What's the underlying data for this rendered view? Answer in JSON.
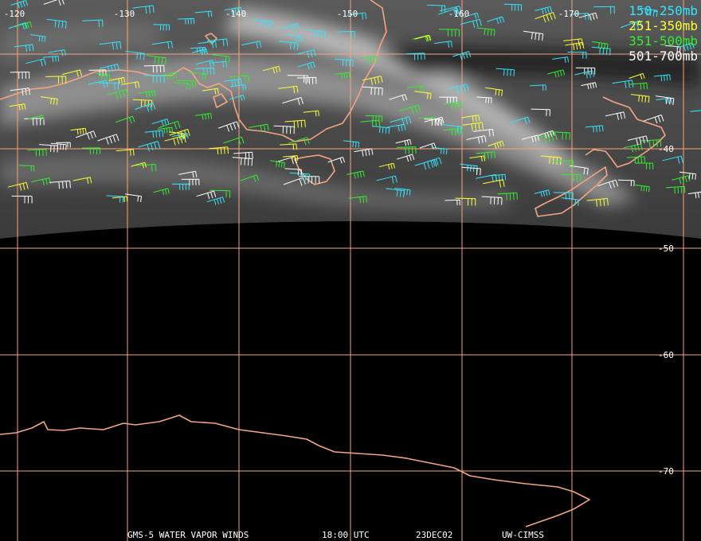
{
  "map": {
    "longitude_labels": [
      "-120",
      "-130",
      "-140",
      "-150",
      "-160",
      "-170"
    ],
    "latitude_labels": [
      "-40",
      "-50",
      "-60",
      "-70"
    ],
    "legend": [
      {
        "label": "150-250mb",
        "color": "#33e6ff"
      },
      {
        "label": "251-350mb",
        "color": "#ffff33"
      },
      {
        "label": "351-500mb",
        "color": "#33ee33"
      },
      {
        "label": "501-700mb",
        "color": "#ffffff"
      }
    ],
    "footer": [
      "GMS-5 WATER VAPOR WINDS",
      "18:00 UTC",
      "23DEC02",
      "UW-CIMSS"
    ]
  }
}
